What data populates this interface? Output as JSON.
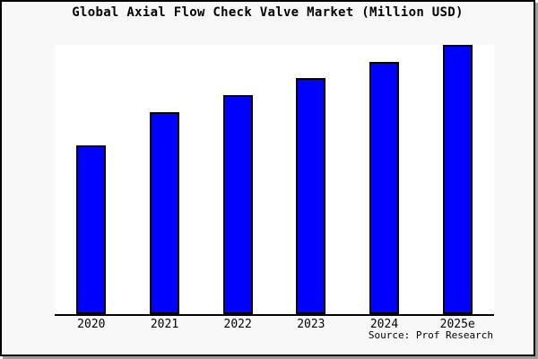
{
  "window": {
    "background": "#f8f8f8",
    "border_color": "#000000",
    "plot_background": "#ffffff"
  },
  "source": {
    "label": "Source: Prof Research"
  },
  "chart_data": {
    "type": "bar",
    "title": "Global Axial Flow Check Valve Market (Million USD)",
    "categories": [
      "2020",
      "2021",
      "2022",
      "2023",
      "2024",
      "2025e"
    ],
    "values": [
      188,
      225,
      244,
      263,
      281,
      300
    ],
    "value_scale_note": "no y-axis tick labels shown in source image; values are relative bar heights (px), baseline 0",
    "xlabel": "",
    "ylabel": "",
    "ylim": [
      0,
      300
    ],
    "grid": false,
    "legend": false,
    "bar_color": "#0000ff",
    "bar_border_color": "#000000",
    "source": "Source: Prof Research"
  }
}
